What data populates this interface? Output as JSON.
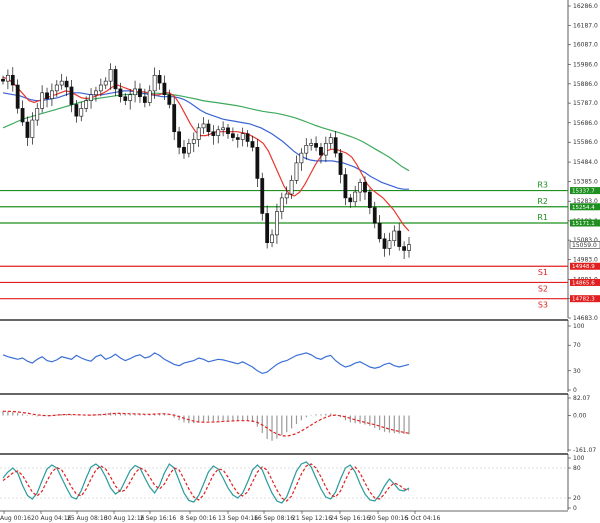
{
  "chart_data": [
    {
      "type": "candlestick",
      "panel": "price",
      "ylim": [
        14683.0,
        16286.0
      ],
      "y_ticks": [
        "16286.0",
        "16187.0",
        "16087.0",
        "15986.0",
        "15886.0",
        "15787.0",
        "15686.0",
        "15586.0",
        "15484.0",
        "15385.0",
        "15283.0",
        "15182.0",
        "15083.0",
        "14983.0",
        "14881.0",
        "14782.0",
        "14683.0"
      ],
      "x_labels": [
        "Aug 00:16",
        "20 Aug 04:16",
        "25 Aug 08:16",
        "30 Aug 12:16",
        "2 Sep 16:16",
        "8 Sep 00:16",
        "13 Sep 04:16",
        "16 Sep 08:16",
        "21 Sep 12:16",
        "24 Sep 16:16",
        "30 Sep 00:16",
        "5 Oct 04:16"
      ],
      "close_series": [
        15900,
        15930,
        15880,
        15760,
        15690,
        15610,
        15700,
        15760,
        15840,
        15810,
        15850,
        15880,
        15900,
        15870,
        15780,
        15720,
        15760,
        15800,
        15830,
        15850,
        15880,
        15900,
        15960,
        15860,
        15820,
        15800,
        15830,
        15860,
        15820,
        15790,
        15850,
        15930,
        15890,
        15830,
        15780,
        15640,
        15560,
        15530,
        15580,
        15600,
        15660,
        15680,
        15640,
        15620,
        15650,
        15660,
        15630,
        15610,
        15600,
        15630,
        15590,
        15560,
        15400,
        15220,
        15070,
        15110,
        15230,
        15300,
        15320,
        15390,
        15480,
        15530,
        15570,
        15580,
        15560,
        15520,
        15580,
        15610,
        15530,
        15420,
        15300,
        15280,
        15330,
        15380,
        15330,
        15250,
        15170,
        15090,
        15040,
        15080,
        15130,
        15050,
        15030,
        15060
      ],
      "ma_fast": {
        "color": "#e8382f",
        "values": [
          15920,
          15910,
          15890,
          15860,
          15830,
          15800,
          15790,
          15800,
          15810,
          15820,
          15830,
          15840,
          15850,
          15845,
          15830,
          15815,
          15810,
          15815,
          15825,
          15835,
          15850,
          15870,
          15880,
          15870,
          15860,
          15850,
          15845,
          15845,
          15840,
          15830,
          15830,
          15840,
          15840,
          15820,
          15780,
          15730,
          15680,
          15640,
          15620,
          15620,
          15630,
          15640,
          15640,
          15640,
          15640,
          15640,
          15635,
          15630,
          15615,
          15600,
          15580,
          15540,
          15480,
          15420,
          15360,
          15320,
          15310,
          15330,
          15370,
          15420,
          15470,
          15510,
          15540,
          15550,
          15550,
          15540,
          15530,
          15510,
          15470,
          15420,
          15370,
          15340,
          15320,
          15300,
          15270,
          15240,
          15200,
          15160,
          15130
        ]
      },
      "ma_mid": {
        "color": "#3b63d6",
        "values": [
          15840,
          15835,
          15830,
          15825,
          15815,
          15805,
          15800,
          15800,
          15805,
          15810,
          15815,
          15825,
          15835,
          15840,
          15840,
          15835,
          15830,
          15830,
          15830,
          15835,
          15840,
          15845,
          15850,
          15850,
          15845,
          15840,
          15835,
          15830,
          15825,
          15820,
          15820,
          15820,
          15815,
          15805,
          15790,
          15770,
          15750,
          15735,
          15725,
          15715,
          15705,
          15700,
          15695,
          15690,
          15685,
          15680,
          15670,
          15660,
          15645,
          15630,
          15610,
          15590,
          15565,
          15540,
          15520,
          15505,
          15495,
          15490,
          15490,
          15490,
          15490,
          15485,
          15480,
          15470,
          15460,
          15445,
          15430,
          15410,
          15395,
          15380,
          15370,
          15360,
          15350,
          15345,
          15345
        ]
      },
      "ma_slow": {
        "color": "#3daa5c",
        "values": [
          15660,
          15675,
          15690,
          15705,
          15715,
          15725,
          15735,
          15745,
          15755,
          15765,
          15775,
          15785,
          15795,
          15805,
          15810,
          15815,
          15820,
          15825,
          15830,
          15832,
          15834,
          15836,
          15838,
          15838,
          15836,
          15832,
          15828,
          15822,
          15815,
          15808,
          15800,
          15795,
          15790,
          15785,
          15780,
          15775,
          15768,
          15760,
          15752,
          15745,
          15740,
          15735,
          15728,
          15720,
          15710,
          15698,
          15685,
          15672,
          15660,
          15650,
          15640,
          15630,
          15618,
          15605,
          15590,
          15570,
          15550,
          15530,
          15510,
          15485,
          15460,
          15440
        ]
      },
      "levels": [
        {
          "name": "R3",
          "value": 15337.7,
          "tag": "15337.7",
          "color": "#1f8f1f"
        },
        {
          "name": "R2",
          "value": 15254.4,
          "tag": "15254.4",
          "color": "#1f8f1f"
        },
        {
          "name": "R1",
          "value": 15171.1,
          "tag": "15171.1",
          "color": "#1f8f1f"
        },
        {
          "name": "S1",
          "value": 14948.9,
          "tag": "14948.9",
          "color": "#e02020"
        },
        {
          "name": "S2",
          "value": 14865.6,
          "tag": "14865.6",
          "color": "#e02020"
        },
        {
          "name": "S3",
          "value": 14782.3,
          "tag": "14782.3",
          "color": "#e02020"
        }
      ],
      "current_price": {
        "value": 15059.0,
        "tag": "15059.0"
      }
    },
    {
      "type": "line",
      "panel": "oscillator",
      "ylim": [
        0,
        100
      ],
      "y_ticks": [
        "100",
        "70",
        "30",
        "0"
      ],
      "series": [
        {
          "color": "#3b6fd6",
          "values": [
            55,
            52,
            50,
            48,
            50,
            45,
            42,
            48,
            52,
            46,
            44,
            47,
            52,
            50,
            48,
            54,
            50,
            47,
            45,
            52,
            55,
            48,
            51,
            56,
            50,
            46,
            49,
            53,
            55,
            50,
            52,
            58,
            54,
            48,
            44,
            40,
            38,
            42,
            44,
            46,
            50,
            48,
            44,
            46,
            48,
            47,
            45,
            43,
            41,
            44,
            40,
            36,
            30,
            26,
            28,
            34,
            40,
            44,
            46,
            50,
            54,
            56,
            58,
            55,
            50,
            48,
            52,
            54,
            46,
            40,
            36,
            38,
            42,
            44,
            40,
            36,
            34,
            36,
            40,
            42,
            38,
            36,
            38,
            40
          ]
        }
      ]
    },
    {
      "type": "bar",
      "panel": "macd",
      "ylim": [
        -161.07,
        82.07
      ],
      "y_ticks": [
        "82.07",
        "0.00",
        "-161.07"
      ],
      "histogram": [
        22,
        20,
        17,
        13,
        8,
        3,
        -2,
        -4,
        -3,
        -1,
        2,
        5,
        7,
        7,
        5,
        2,
        0,
        1,
        3,
        5,
        8,
        10,
        14,
        12,
        9,
        7,
        6,
        7,
        6,
        4,
        6,
        10,
        9,
        6,
        1,
        -10,
        -22,
        -32,
        -36,
        -36,
        -32,
        -28,
        -26,
        -26,
        -24,
        -22,
        -22,
        -22,
        -22,
        -22,
        -24,
        -30,
        -52,
        -82,
        -110,
        -118,
        -108,
        -92,
        -78,
        -60,
        -40,
        -22,
        -8,
        2,
        6,
        6,
        8,
        10,
        4,
        -8,
        -22,
        -32,
        -36,
        -38,
        -42,
        -48,
        -58,
        -68,
        -76,
        -80,
        -82,
        -84,
        -86,
        -88
      ],
      "signal": {
        "color": "#e02020",
        "values": [
          20,
          20,
          19,
          17,
          14,
          11,
          7,
          3,
          1,
          -1,
          0,
          2,
          4,
          5,
          5,
          4,
          3,
          2,
          2,
          3,
          4,
          6,
          8,
          10,
          10,
          9,
          8,
          8,
          7,
          6,
          6,
          7,
          8,
          8,
          6,
          2,
          -5,
          -13,
          -20,
          -26,
          -30,
          -31,
          -31,
          -30,
          -29,
          -27,
          -26,
          -25,
          -24,
          -24,
          -24,
          -26,
          -32,
          -44,
          -58,
          -74,
          -86,
          -94,
          -96,
          -92,
          -84,
          -72,
          -58,
          -44,
          -30,
          -18,
          -8,
          0,
          2,
          -1,
          -6,
          -13,
          -20,
          -26,
          -32,
          -37,
          -43,
          -50,
          -57,
          -63,
          -69,
          -74,
          -79,
          -83
        ]
      }
    },
    {
      "type": "line",
      "panel": "stochastic",
      "ylim": [
        0,
        100
      ],
      "y_ticks": [
        "100",
        "80",
        "20",
        "0"
      ],
      "series": [
        {
          "color": "#2a9a9a",
          "values": [
            60,
            72,
            80,
            70,
            45,
            25,
            18,
            30,
            55,
            78,
            86,
            80,
            60,
            40,
            22,
            18,
            35,
            60,
            82,
            88,
            80,
            62,
            40,
            28,
            35,
            55,
            75,
            85,
            80,
            60,
            42,
            30,
            45,
            70,
            88,
            80,
            55,
            30,
            15,
            12,
            25,
            48,
            72,
            84,
            78,
            60,
            40,
            26,
            20,
            30,
            52,
            76,
            86,
            76,
            52,
            30,
            14,
            10,
            22,
            48,
            74,
            88,
            92,
            82,
            60,
            38,
            22,
            18,
            32,
            58,
            80,
            86,
            72,
            48,
            28,
            16,
            14,
            26,
            44,
            58,
            48,
            36,
            34,
            40
          ]
        },
        {
          "color": "#e02020",
          "values": [
            55,
            62,
            70,
            74,
            65,
            48,
            32,
            24,
            34,
            54,
            72,
            81,
            76,
            60,
            42,
            28,
            24,
            38,
            58,
            76,
            84,
            78,
            62,
            44,
            32,
            36,
            52,
            70,
            80,
            76,
            62,
            46,
            38,
            48,
            66,
            80,
            76,
            58,
            38,
            22,
            16,
            26,
            46,
            66,
            78,
            76,
            62,
            44,
            30,
            24,
            32,
            52,
            72,
            82,
            76,
            56,
            36,
            20,
            14,
            24,
            46,
            68,
            84,
            88,
            80,
            62,
            42,
            26,
            22,
            34,
            56,
            76,
            82,
            70,
            50,
            32,
            20,
            18,
            28,
            42,
            50,
            46,
            38,
            36
          ]
        }
      ]
    }
  ]
}
